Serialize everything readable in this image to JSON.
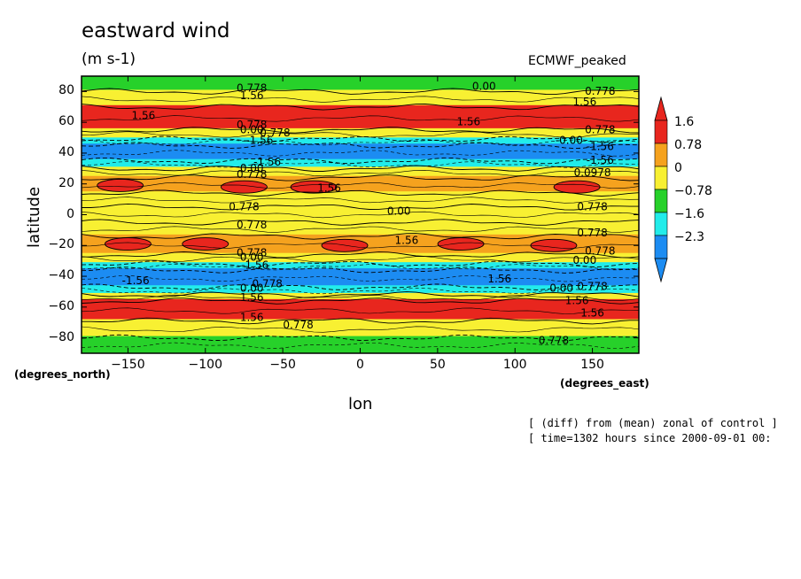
{
  "chart_data": {
    "type": "heatmap",
    "title": "eastward wind",
    "units": "(m s-1)",
    "model_label": "ECMWF_peaked",
    "xlabel": "lon",
    "ylabel": "latitude",
    "x_unit_label": "(degrees_east)",
    "y_unit_label": "(degrees_north)",
    "xlim": [
      -180,
      180
    ],
    "ylim": [
      -90,
      90
    ],
    "x_ticks": [
      -150,
      -100,
      -50,
      0,
      50,
      100,
      150
    ],
    "x_tick_labels": [
      "−150",
      "−100",
      "−50",
      "0",
      "50",
      "100",
      "150"
    ],
    "y_ticks": [
      80,
      60,
      40,
      20,
      0,
      -20,
      -40,
      -60,
      -80
    ],
    "y_tick_labels": [
      "80",
      "60",
      "40",
      "20",
      "0",
      "−20",
      "−40",
      "−60",
      "−80"
    ],
    "colorbar": {
      "levels": [
        1.6,
        0.78,
        0,
        -0.78,
        -1.6,
        -2.3
      ],
      "labels": [
        "1.6",
        "0.78",
        "0",
        "−0.78",
        "−1.6",
        "−2.3"
      ],
      "colors": [
        "#e8261e",
        "#f5a21e",
        "#f8f032",
        "#27d12a",
        "#22ecea",
        "#1c8cf2"
      ],
      "extend": "both"
    },
    "zonal_bands": [
      {
        "lat": [
          80,
          90
        ],
        "value": -0.4
      },
      {
        "lat": [
          70,
          80
        ],
        "value": 0.6
      },
      {
        "lat": [
          55,
          70
        ],
        "value": 1.8
      },
      {
        "lat": [
          49,
          55
        ],
        "value": 0.4
      },
      {
        "lat": [
          45,
          49
        ],
        "value": -1.0
      },
      {
        "lat": [
          35,
          45
        ],
        "value": -2.0
      },
      {
        "lat": [
          30,
          35
        ],
        "value": -1.0
      },
      {
        "lat": [
          24,
          30
        ],
        "value": 0.6
      },
      {
        "lat": [
          14,
          24
        ],
        "value": 1.2
      },
      {
        "lat": [
          5,
          14
        ],
        "value": 0.6
      },
      {
        "lat": [
          -5,
          5
        ],
        "value": 0.2
      },
      {
        "lat": [
          -14,
          -5
        ],
        "value": 0.6
      },
      {
        "lat": [
          -26,
          -14
        ],
        "value": 1.2
      },
      {
        "lat": [
          -32,
          -26
        ],
        "value": 0.5
      },
      {
        "lat": [
          -36,
          -32
        ],
        "value": -0.9
      },
      {
        "lat": [
          -47,
          -36
        ],
        "value": -2.0
      },
      {
        "lat": [
          -52,
          -47
        ],
        "value": -0.9
      },
      {
        "lat": [
          -56,
          -52
        ],
        "value": 0.5
      },
      {
        "lat": [
          -69,
          -56
        ],
        "value": 1.8
      },
      {
        "lat": [
          -80,
          -69
        ],
        "value": 0.6
      },
      {
        "lat": [
          -90,
          -80
        ],
        "value": -0.3
      }
    ],
    "maxima": [
      {
        "lon": -155,
        "lat": 19,
        "value": 2.0
      },
      {
        "lon": -75,
        "lat": 18,
        "value": 2.0
      },
      {
        "lon": -30,
        "lat": 18,
        "value": 2.0
      },
      {
        "lon": 140,
        "lat": 18,
        "value": 2.0
      },
      {
        "lon": -150,
        "lat": -19,
        "value": 2.0
      },
      {
        "lon": -100,
        "lat": -19,
        "value": 2.0
      },
      {
        "lon": -10,
        "lat": -20,
        "value": 2.0
      },
      {
        "lon": 65,
        "lat": -19,
        "value": 2.0
      },
      {
        "lon": 125,
        "lat": -20,
        "value": 2.0
      }
    ],
    "contour_labels": [
      {
        "text": "0.778",
        "lon": -70,
        "lat": 82
      },
      {
        "text": "1.56",
        "lon": -70,
        "lat": 77
      },
      {
        "text": "0.00",
        "lon": 80,
        "lat": 83
      },
      {
        "text": "0.778",
        "lon": 155,
        "lat": 80
      },
      {
        "text": "1.56",
        "lon": 145,
        "lat": 73
      },
      {
        "text": "1.56",
        "lon": -140,
        "lat": 64
      },
      {
        "text": "1.56",
        "lon": 70,
        "lat": 60
      },
      {
        "text": "0.778",
        "lon": 155,
        "lat": 55
      },
      {
        "text": "0.778",
        "lon": -70,
        "lat": 58
      },
      {
        "text": "0.00",
        "lon": -70,
        "lat": 55
      },
      {
        "text": "-1.56",
        "lon": -65,
        "lat": 48
      },
      {
        "text": "0.778",
        "lon": -55,
        "lat": 53
      },
      {
        "text": "-0.00",
        "lon": 135,
        "lat": 48
      },
      {
        "text": "-1.56",
        "lon": 155,
        "lat": 44
      },
      {
        "text": "-1.56",
        "lon": 155,
        "lat": 35
      },
      {
        "text": "-1.56",
        "lon": -60,
        "lat": 34
      },
      {
        "text": "0.00",
        "lon": -70,
        "lat": 30
      },
      {
        "text": "0.778",
        "lon": -70,
        "lat": 26
      },
      {
        "text": "0.0978",
        "lon": 150,
        "lat": 27
      },
      {
        "text": "1.56",
        "lon": -20,
        "lat": 17
      },
      {
        "text": "0.778",
        "lon": -75,
        "lat": 5
      },
      {
        "text": "0.00",
        "lon": 25,
        "lat": 2
      },
      {
        "text": "0.778",
        "lon": 150,
        "lat": 5
      },
      {
        "text": "0.778",
        "lon": -70,
        "lat": -7
      },
      {
        "text": "0.778",
        "lon": 150,
        "lat": -12
      },
      {
        "text": "1.56",
        "lon": 30,
        "lat": -17
      },
      {
        "text": "0.778",
        "lon": 155,
        "lat": -24
      },
      {
        "text": "0.778",
        "lon": -70,
        "lat": -25
      },
      {
        "text": "0.00",
        "lon": -70,
        "lat": -28
      },
      {
        "text": "0.00",
        "lon": 145,
        "lat": -30
      },
      {
        "text": "-1.56",
        "lon": -68,
        "lat": -33
      },
      {
        "text": "1.56",
        "lon": 90,
        "lat": -42
      },
      {
        "text": "-1.56",
        "lon": -145,
        "lat": -43
      },
      {
        "text": "0.778",
        "lon": -60,
        "lat": -45
      },
      {
        "text": "0.00",
        "lon": -70,
        "lat": -48
      },
      {
        "text": "0.778",
        "lon": 150,
        "lat": -47
      },
      {
        "text": "0.00",
        "lon": 130,
        "lat": -48
      },
      {
        "text": "1.56",
        "lon": -70,
        "lat": -54
      },
      {
        "text": "1.56",
        "lon": 140,
        "lat": -56
      },
      {
        "text": "1.56",
        "lon": 150,
        "lat": -64
      },
      {
        "text": "1.56",
        "lon": -70,
        "lat": -67
      },
      {
        "text": "0.778",
        "lon": -40,
        "lat": -72
      },
      {
        "text": "0.778",
        "lon": 125,
        "lat": -82
      }
    ]
  },
  "notes": {
    "line1": "[ (diff) from (mean) zonal of control ]",
    "line2": "[ time=1302 hours since 2000-09-01 00:"
  }
}
